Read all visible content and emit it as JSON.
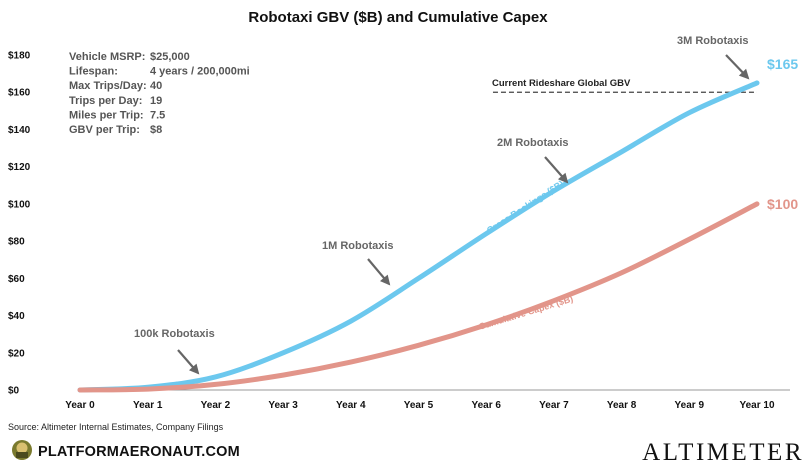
{
  "chart_data": {
    "type": "line",
    "title": "Robotaxi GBV ($B) and Cumulative Capex",
    "categories": [
      "Year 0",
      "Year 1",
      "Year 2",
      "Year 3",
      "Year 4",
      "Year 5",
      "Year 6",
      "Year 7",
      "Year 8",
      "Year 9",
      "Year 10"
    ],
    "series": [
      {
        "name": "Gross Bookings ($B)",
        "color": "#6cc8ee",
        "values": [
          0,
          1.5,
          7,
          20,
          37,
          60,
          84,
          107,
          128,
          149,
          165
        ]
      },
      {
        "name": "Cumulative Capex ($B)",
        "color": "#e2958a",
        "values": [
          0,
          0.5,
          3,
          8,
          15,
          24,
          35,
          48,
          63,
          81,
          100
        ]
      }
    ],
    "end_labels": [
      "$165",
      "$100"
    ],
    "ylim": [
      0,
      180
    ],
    "y_ticks": [
      "$0",
      "$20",
      "$40",
      "$60",
      "$80",
      "$100",
      "$120",
      "$140",
      "$160",
      "$180"
    ],
    "y_tick_values": [
      0,
      20,
      40,
      60,
      80,
      100,
      120,
      140,
      160,
      180
    ],
    "reference_line": {
      "label": "Current Rideshare Global GBV",
      "value": 160,
      "x_start": 6.1,
      "x_end": 10
    },
    "assumptions": [
      {
        "label": "Vehicle MSRP:",
        "value": "$25,000"
      },
      {
        "label": "Lifespan:",
        "value": "4 years / 200,000mi"
      },
      {
        "label": "Max Trips/Day:",
        "value": "40"
      },
      {
        "label": "Trips per Day:",
        "value": "19"
      },
      {
        "label": "Miles per Trip:",
        "value": "7.5"
      },
      {
        "label": "GBV per Trip:",
        "value": "$8"
      }
    ],
    "annotations": [
      {
        "text": "100k Robotaxis",
        "x": 2.0
      },
      {
        "text": "1M Robotaxis",
        "x": 4.5
      },
      {
        "text": "2M Robotaxis",
        "x": 6.9
      },
      {
        "text": "3M Robotaxis",
        "x": 9.8
      }
    ],
    "grid": false,
    "legend": "inline"
  },
  "source": "Source: Altimeter Internal Estimates, Company Filings",
  "brand_left": "PLATFORMAERONAUT.COM",
  "brand_right": "ALTIMETER",
  "colors": {
    "gbv": "#6cc8ee",
    "capex": "#e2958a",
    "axis": "#999999",
    "annotation": "#666666"
  }
}
